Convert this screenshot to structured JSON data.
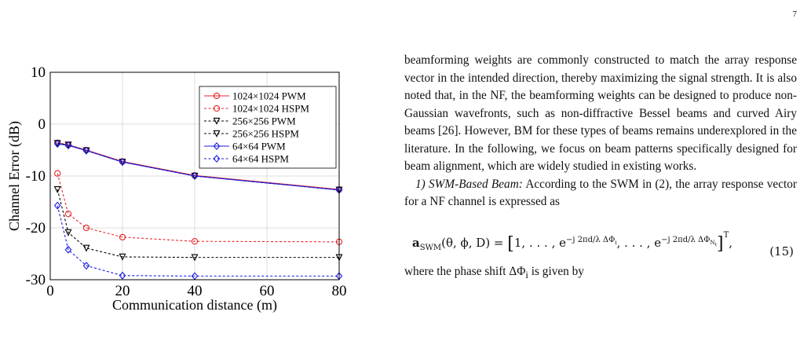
{
  "page": {
    "number": "7"
  },
  "figure": {
    "chart_data": {
      "type": "line",
      "xlabel": "Communication distance (m)",
      "ylabel": "Channel Error (dB)",
      "xlim": [
        0,
        80
      ],
      "ylim": [
        -30,
        10
      ],
      "xticks": [
        0,
        20,
        40,
        60,
        80
      ],
      "yticks": [
        -30,
        -20,
        -10,
        0,
        10
      ],
      "grid": true,
      "legend_position": "top-right",
      "x": [
        2,
        5,
        10,
        20,
        40,
        80
      ],
      "series": [
        {
          "name": "1024×1024 PWM",
          "color": "#e8262a",
          "style": "solid",
          "marker": "circle",
          "values": [
            -3.6,
            -4.0,
            -5.0,
            -7.2,
            -9.9,
            -12.6
          ]
        },
        {
          "name": "1024×1024 HSPM",
          "color": "#e8262a",
          "style": "dashed",
          "marker": "circle",
          "values": [
            -9.5,
            -17.3,
            -20.0,
            -21.8,
            -22.6,
            -22.7
          ]
        },
        {
          "name": "256×256 PWM",
          "color": "#000000",
          "style": "dashed",
          "marker": "triangle",
          "values": [
            -3.7,
            -4.0,
            -5.1,
            -7.3,
            -10.0,
            -12.7
          ]
        },
        {
          "name": "256×256 HSPM",
          "color": "#000000",
          "style": "dashed",
          "marker": "triangle",
          "values": [
            -12.6,
            -20.9,
            -23.9,
            -25.6,
            -25.7,
            -25.7
          ]
        },
        {
          "name": "64×64 PWM",
          "color": "#1a1ae6",
          "style": "solid",
          "marker": "diamond",
          "values": [
            -3.8,
            -4.1,
            -5.1,
            -7.3,
            -10.0,
            -12.7
          ]
        },
        {
          "name": "64×64 HSPM",
          "color": "#1a1ae6",
          "style": "dashed",
          "marker": "diamond",
          "values": [
            -15.7,
            -24.2,
            -27.3,
            -29.2,
            -29.3,
            -29.3
          ]
        }
      ]
    }
  },
  "text": {
    "para1": "beamforming weights are commonly constructed to match the array response vector in the intended direction, thereby maximizing the signal strength. It is also noted that, in the NF, the beamforming weights can be designed to produce non-Gaussian wavefronts, such as non-diffractive Bessel beams and curved Airy beams [26]. However, BM for these types of beams remains underexplored in the literature. In the following, we focus on beam patterns specifically designed for beam alignment, which are widely studied in existing works.",
    "section_title": "1) SWM-Based Beam:",
    "para2": "According to the SWM in (2), the array response vector for a NF channel is expressed as",
    "para3": "where the phase shift ΔΦ",
    "para3_sub": "i",
    "para3_tail": " is given by"
  },
  "equation": {
    "vector": "a",
    "subscript": "SWM",
    "args": "(θ, ϕ, D) =",
    "body_start": "1, . . . , e",
    "exp_i": "−j 2πd/λ ΔΦ",
    "exp_i_sub": "i",
    "middle": ", . . . , e",
    "exp_n": "−j 2πd/λ ΔΦ",
    "exp_n_sub": "N",
    "exp_n_subsub": "t",
    "transpose": "T",
    "number": "(15)"
  }
}
